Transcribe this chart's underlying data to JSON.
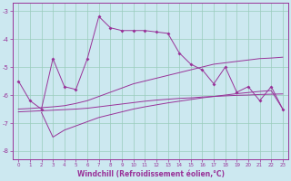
{
  "xlabel": "Windchill (Refroidissement éolien,°C)",
  "bg_color": "#cce8f0",
  "grid_color": "#99ccbb",
  "line_color": "#993399",
  "xlim": [
    -0.5,
    23.5
  ],
  "ylim": [
    -8.3,
    -2.7
  ],
  "yticks": [
    -8,
    -7,
    -6,
    -5,
    -4,
    -3
  ],
  "xticks": [
    0,
    1,
    2,
    3,
    4,
    5,
    6,
    7,
    8,
    9,
    10,
    11,
    12,
    13,
    14,
    15,
    16,
    17,
    18,
    19,
    20,
    21,
    22,
    23
  ],
  "line1_x": [
    0,
    1,
    2,
    3,
    4,
    5,
    6,
    7,
    8,
    9,
    10,
    11,
    12,
    13,
    14,
    15,
    16,
    17,
    18,
    19,
    20,
    21,
    22,
    23
  ],
  "line1_y": [
    -5.5,
    -6.2,
    -6.5,
    -4.7,
    -5.7,
    -5.8,
    -4.7,
    -3.2,
    -3.6,
    -3.7,
    -3.7,
    -3.7,
    -3.75,
    -3.8,
    -4.5,
    -4.9,
    -5.1,
    -5.6,
    -5.0,
    -5.9,
    -5.7,
    -6.2,
    -5.7,
    -6.5
  ],
  "line2_x": [
    0,
    1,
    2,
    3,
    4,
    5,
    6,
    7,
    8,
    9,
    10,
    11,
    12,
    13,
    14,
    15,
    16,
    17,
    18,
    19,
    20,
    21,
    22,
    23
  ],
  "line2_y": [
    -6.5,
    -6.48,
    -6.45,
    -6.42,
    -6.38,
    -6.3,
    -6.2,
    -6.05,
    -5.9,
    -5.75,
    -5.6,
    -5.5,
    -5.4,
    -5.3,
    -5.2,
    -5.1,
    -5.0,
    -4.9,
    -4.85,
    -4.8,
    -4.75,
    -4.7,
    -4.68,
    -4.65
  ],
  "line3_x": [
    0,
    1,
    2,
    3,
    4,
    5,
    6,
    7,
    8,
    9,
    10,
    11,
    12,
    13,
    14,
    15,
    16,
    17,
    18,
    19,
    20,
    21,
    22,
    23
  ],
  "line3_y": [
    -6.6,
    -6.58,
    -6.56,
    -6.54,
    -6.52,
    -6.5,
    -6.47,
    -6.42,
    -6.37,
    -6.32,
    -6.27,
    -6.22,
    -6.18,
    -6.15,
    -6.12,
    -6.1,
    -6.07,
    -6.05,
    -6.03,
    -6.01,
    -6.0,
    -5.98,
    -5.97,
    -5.96
  ],
  "line4_x": [
    2,
    3,
    4,
    5,
    6,
    7,
    8,
    9,
    10,
    11,
    12,
    13,
    14,
    15,
    16,
    17,
    18,
    19,
    20,
    21,
    22,
    23
  ],
  "line4_y": [
    -6.62,
    -7.5,
    -7.25,
    -7.1,
    -6.95,
    -6.8,
    -6.7,
    -6.6,
    -6.5,
    -6.42,
    -6.35,
    -6.28,
    -6.22,
    -6.16,
    -6.1,
    -6.05,
    -6.0,
    -5.95,
    -5.91,
    -5.87,
    -5.84,
    -6.5
  ]
}
